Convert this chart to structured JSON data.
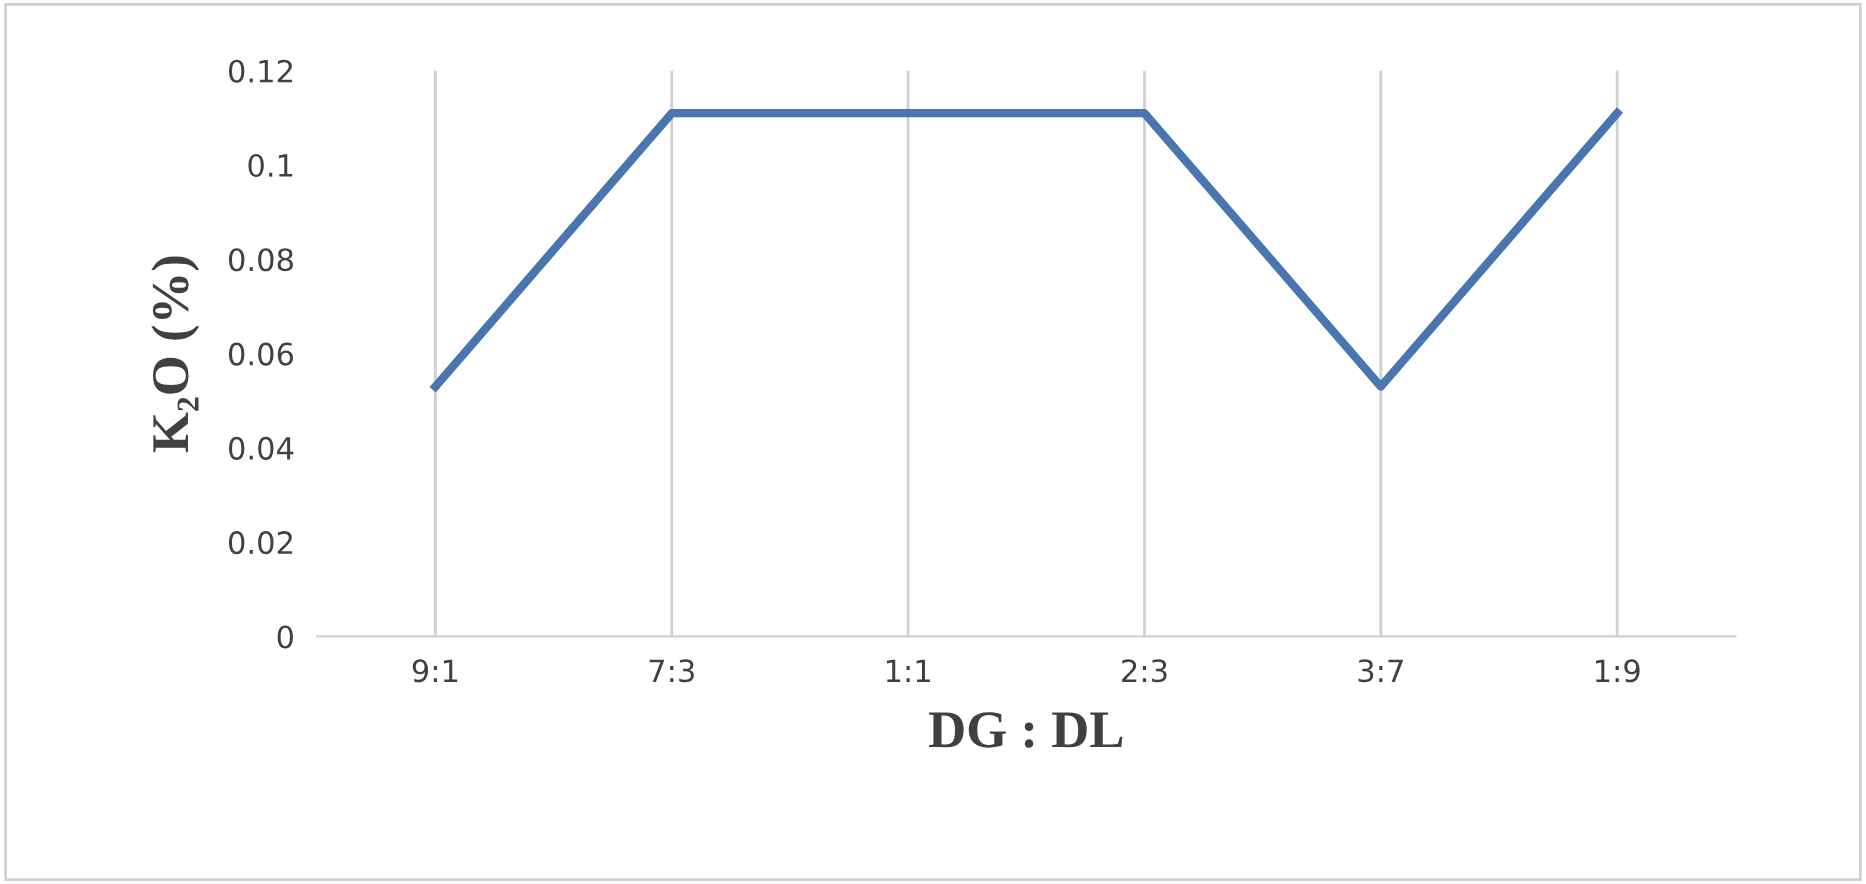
{
  "chart_data": {
    "type": "line",
    "xlabel": "DG : DL",
    "ylabel": "K₂O (%)",
    "categories": [
      "9:1",
      "7:3",
      "1:1",
      "2:3",
      "3:7",
      "1:9"
    ],
    "series": [
      {
        "color": "#4a76b0",
        "values": [
          0.053,
          0.111,
          0.111,
          0.111,
          0.053,
          0.111
        ]
      }
    ],
    "ylim": [
      0,
      0.12
    ],
    "yticks": [
      {
        "value": 0,
        "label": "0"
      },
      0.02,
      0.04,
      0.06,
      0.08,
      {
        "value": 0.1,
        "label": "0.1"
      },
      0.12
    ],
    "grid": "x",
    "marker": "none",
    "line_style": "solid",
    "legend": false
  }
}
